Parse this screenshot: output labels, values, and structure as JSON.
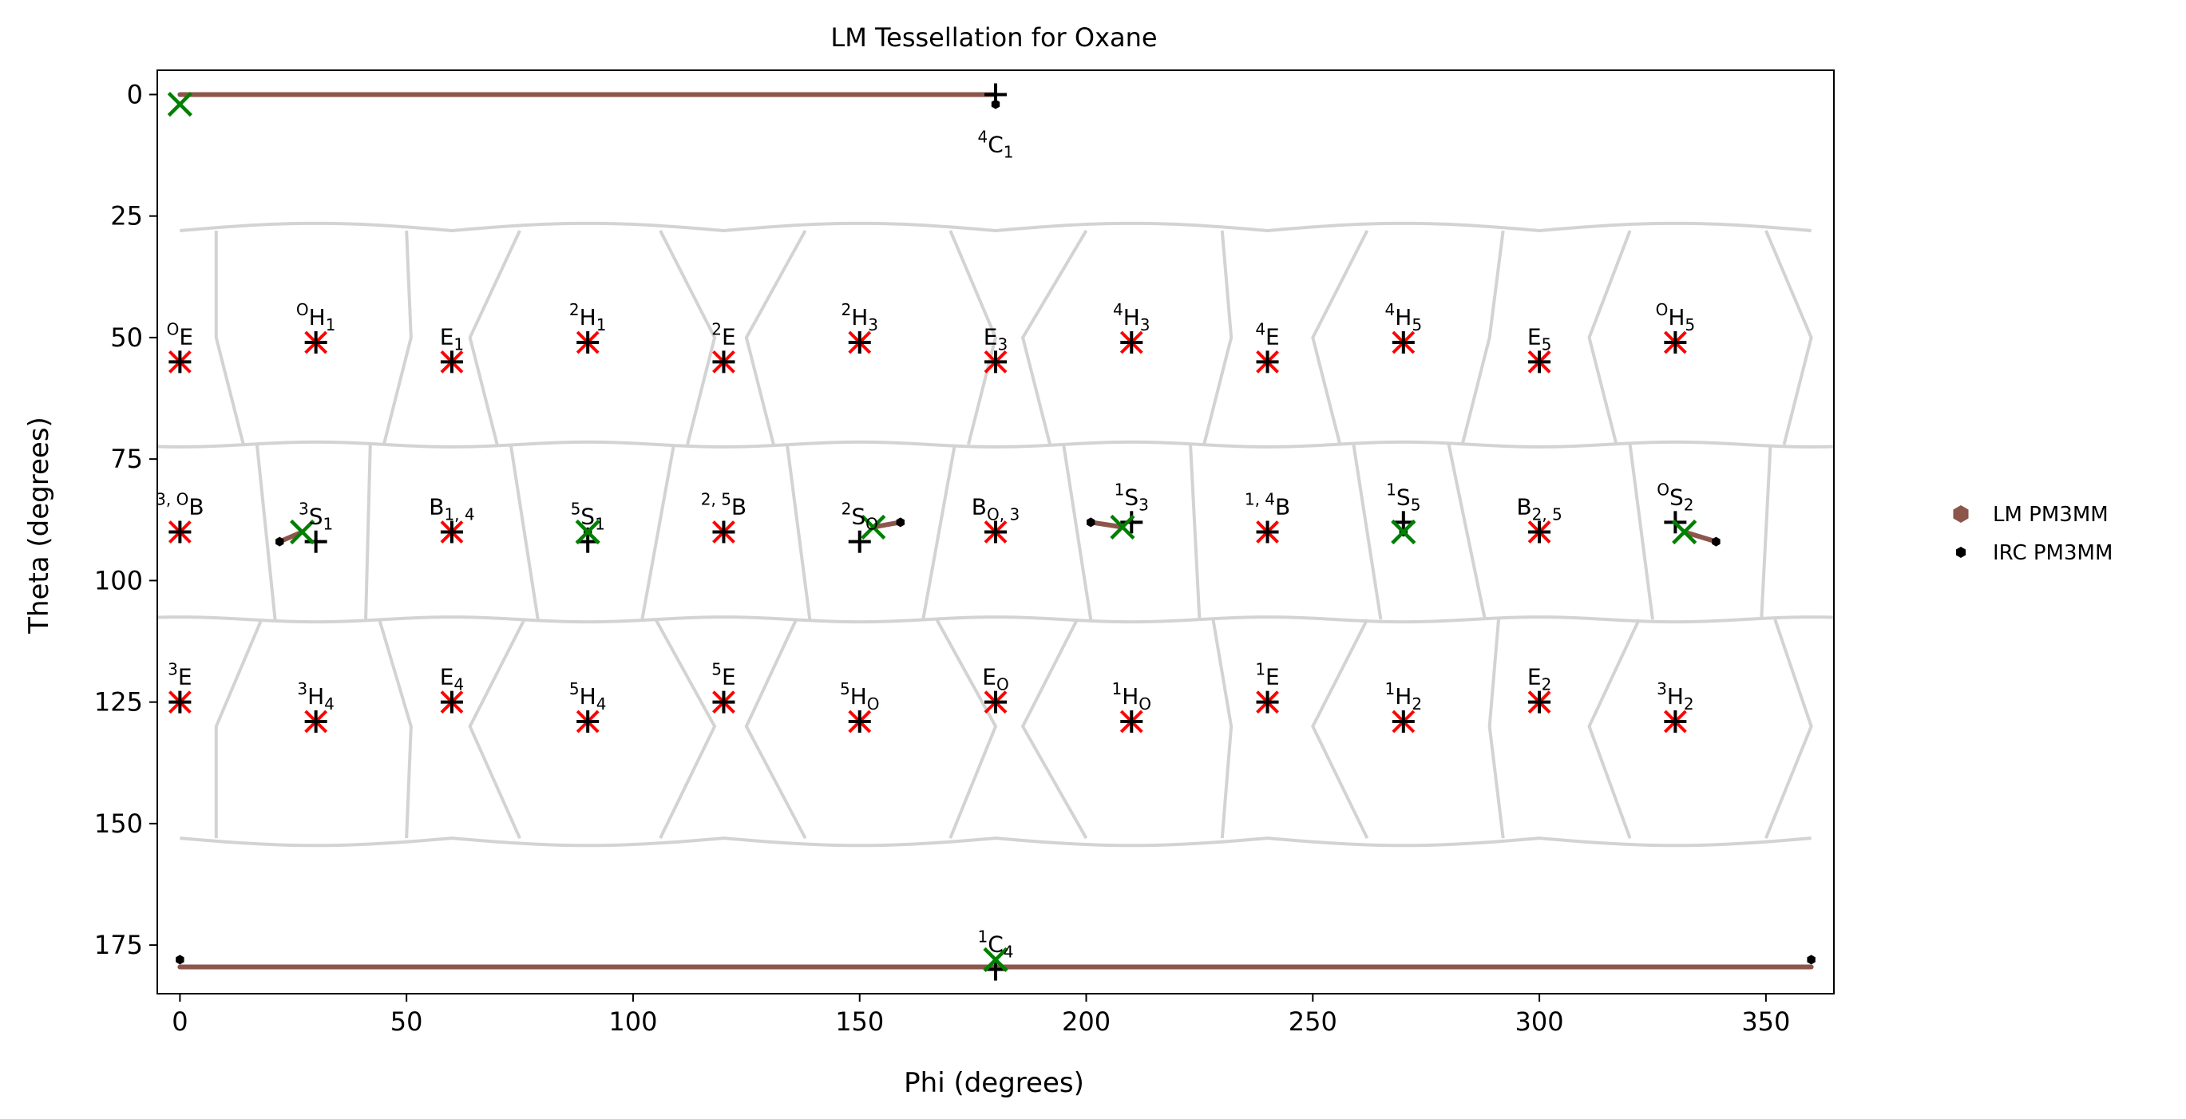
{
  "chart_data": {
    "type": "scatter",
    "title": "LM Tessellation for Oxane",
    "xlabel": "Phi (degrees)",
    "ylabel": "Theta (degrees)",
    "xlim": [
      -5,
      365
    ],
    "ylim": [
      185,
      -5
    ],
    "y_inverted": true,
    "xticks": [
      0,
      50,
      100,
      150,
      200,
      250,
      300,
      350
    ],
    "yticks": [
      0,
      25,
      50,
      75,
      100,
      125,
      150,
      175
    ],
    "grid": false,
    "legend_placement": "outside-right",
    "legend": [
      {
        "label": "LM PM3MM",
        "color": "#8c564b",
        "marker": "hexagon"
      },
      {
        "label": "IRC PM3MM",
        "color": "#000000",
        "marker": "hexagon-small"
      }
    ],
    "colors": {
      "tessellation": "#d3d3d3",
      "path": "#8c564b",
      "reference_x": "#ff0000",
      "lm_x": "#008000",
      "plus": "#000000"
    },
    "reference_points": [
      {
        "sup": "",
        "base": "",
        "sub": "",
        "full": "4C1",
        "lsup": "4",
        "lbase": "C",
        "lsub": "1",
        "phi": 180,
        "theta": 0,
        "label_below": true
      },
      {
        "full": "OE",
        "lsup": "O",
        "lbase": "E",
        "lsub": "",
        "phi": 0,
        "theta": 55
      },
      {
        "full": "OH1",
        "lsup": "O",
        "lbase": "H",
        "lsub": "1",
        "phi": 30,
        "theta": 51
      },
      {
        "full": "E1",
        "lsup": "",
        "lbase": "E",
        "lsub": "1",
        "phi": 60,
        "theta": 55
      },
      {
        "full": "2H1",
        "lsup": "2",
        "lbase": "H",
        "lsub": "1",
        "phi": 90,
        "theta": 51
      },
      {
        "full": "2E",
        "lsup": "2",
        "lbase": "E",
        "lsub": "",
        "phi": 120,
        "theta": 55
      },
      {
        "full": "2H3",
        "lsup": "2",
        "lbase": "H",
        "lsub": "3",
        "phi": 150,
        "theta": 51
      },
      {
        "full": "E3",
        "lsup": "",
        "lbase": "E",
        "lsub": "3",
        "phi": 180,
        "theta": 55
      },
      {
        "full": "4H3",
        "lsup": "4",
        "lbase": "H",
        "lsub": "3",
        "phi": 210,
        "theta": 51
      },
      {
        "full": "4E",
        "lsup": "4",
        "lbase": "E",
        "lsub": "",
        "phi": 240,
        "theta": 55
      },
      {
        "full": "4H5",
        "lsup": "4",
        "lbase": "H",
        "lsub": "5",
        "phi": 270,
        "theta": 51
      },
      {
        "full": "E5",
        "lsup": "",
        "lbase": "E",
        "lsub": "5",
        "phi": 300,
        "theta": 55
      },
      {
        "full": "OH5",
        "lsup": "O",
        "lbase": "H",
        "lsub": "5",
        "phi": 330,
        "theta": 51
      },
      {
        "full": "3,OB",
        "lsup": "3, O",
        "lbase": "B",
        "lsub": "",
        "phi": 0,
        "theta": 90
      },
      {
        "full": "3S1",
        "lsup": "3",
        "lbase": "S",
        "lsub": "1",
        "phi": 30,
        "theta": 92
      },
      {
        "full": "B1,4",
        "lsup": "",
        "lbase": "B",
        "lsub": "1, 4",
        "phi": 60,
        "theta": 90
      },
      {
        "full": "5S1",
        "lsup": "5",
        "lbase": "S",
        "lsub": "1",
        "phi": 90,
        "theta": 92
      },
      {
        "full": "2,5B",
        "lsup": "2, 5",
        "lbase": "B",
        "lsub": "",
        "phi": 120,
        "theta": 90
      },
      {
        "full": "2SO",
        "lsup": "2",
        "lbase": "S",
        "lsub": "O",
        "phi": 150,
        "theta": 92
      },
      {
        "full": "BO,3",
        "lsup": "",
        "lbase": "B",
        "lsub": "O, 3",
        "phi": 180,
        "theta": 90
      },
      {
        "full": "1S3",
        "lsup": "1",
        "lbase": "S",
        "lsub": "3",
        "phi": 210,
        "theta": 88
      },
      {
        "full": "1,4B",
        "lsup": "1, 4",
        "lbase": "B",
        "lsub": "",
        "phi": 240,
        "theta": 90
      },
      {
        "full": "1S5",
        "lsup": "1",
        "lbase": "S",
        "lsub": "5",
        "phi": 270,
        "theta": 88
      },
      {
        "full": "B2,5",
        "lsup": "",
        "lbase": "B",
        "lsub": "2, 5",
        "phi": 300,
        "theta": 90
      },
      {
        "full": "OS2",
        "lsup": "O",
        "lbase": "S",
        "lsub": "2",
        "phi": 330,
        "theta": 88
      },
      {
        "full": "3E",
        "lsup": "3",
        "lbase": "E",
        "lsub": "",
        "phi": 0,
        "theta": 125
      },
      {
        "full": "3H4",
        "lsup": "3",
        "lbase": "H",
        "lsub": "4",
        "phi": 30,
        "theta": 129
      },
      {
        "full": "E4",
        "lsup": "",
        "lbase": "E",
        "lsub": "4",
        "phi": 60,
        "theta": 125
      },
      {
        "full": "5H4",
        "lsup": "5",
        "lbase": "H",
        "lsub": "4",
        "phi": 90,
        "theta": 129
      },
      {
        "full": "5E",
        "lsup": "5",
        "lbase": "E",
        "lsub": "",
        "phi": 120,
        "theta": 125
      },
      {
        "full": "5HO",
        "lsup": "5",
        "lbase": "H",
        "lsub": "O",
        "phi": 150,
        "theta": 129
      },
      {
        "full": "EO",
        "lsup": "",
        "lbase": "E",
        "lsub": "O",
        "phi": 180,
        "theta": 125
      },
      {
        "full": "1HO",
        "lsup": "1",
        "lbase": "H",
        "lsub": "O",
        "phi": 210,
        "theta": 129
      },
      {
        "full": "1E",
        "lsup": "1",
        "lbase": "E",
        "lsub": "",
        "phi": 240,
        "theta": 125
      },
      {
        "full": "1H2",
        "lsup": "1",
        "lbase": "H",
        "lsub": "2",
        "phi": 270,
        "theta": 129
      },
      {
        "full": "E2",
        "lsup": "",
        "lbase": "E",
        "lsub": "2",
        "phi": 300,
        "theta": 125
      },
      {
        "full": "3H2",
        "lsup": "3",
        "lbase": "H",
        "lsub": "2",
        "phi": 330,
        "theta": 129
      },
      {
        "full": "1C4",
        "lsup": "1",
        "lbase": "C",
        "lsub": "4",
        "phi": 180,
        "theta": 180
      }
    ],
    "red_x_points": [
      [
        0,
        55
      ],
      [
        30,
        51
      ],
      [
        60,
        55
      ],
      [
        90,
        51
      ],
      [
        120,
        55
      ],
      [
        150,
        51
      ],
      [
        180,
        55
      ],
      [
        210,
        51
      ],
      [
        240,
        55
      ],
      [
        270,
        51
      ],
      [
        300,
        55
      ],
      [
        330,
        51
      ],
      [
        0,
        90
      ],
      [
        60,
        90
      ],
      [
        120,
        90
      ],
      [
        180,
        90
      ],
      [
        240,
        90
      ],
      [
        300,
        90
      ],
      [
        0,
        125
      ],
      [
        30,
        129
      ],
      [
        60,
        125
      ],
      [
        90,
        129
      ],
      [
        120,
        125
      ],
      [
        150,
        129
      ],
      [
        180,
        125
      ],
      [
        210,
        129
      ],
      [
        240,
        125
      ],
      [
        270,
        129
      ],
      [
        300,
        125
      ],
      [
        330,
        129
      ]
    ],
    "plus_points": [
      [
        180,
        0
      ],
      [
        0,
        55
      ],
      [
        30,
        51
      ],
      [
        60,
        55
      ],
      [
        90,
        51
      ],
      [
        120,
        55
      ],
      [
        150,
        51
      ],
      [
        180,
        55
      ],
      [
        210,
        51
      ],
      [
        240,
        55
      ],
      [
        270,
        51
      ],
      [
        300,
        55
      ],
      [
        330,
        51
      ],
      [
        0,
        90
      ],
      [
        30,
        92
      ],
      [
        60,
        90
      ],
      [
        90,
        92
      ],
      [
        120,
        90
      ],
      [
        150,
        92
      ],
      [
        180,
        90
      ],
      [
        210,
        88
      ],
      [
        240,
        90
      ],
      [
        270,
        88
      ],
      [
        300,
        90
      ],
      [
        330,
        88
      ],
      [
        0,
        125
      ],
      [
        30,
        129
      ],
      [
        60,
        125
      ],
      [
        90,
        129
      ],
      [
        120,
        125
      ],
      [
        150,
        129
      ],
      [
        180,
        125
      ],
      [
        210,
        129
      ],
      [
        240,
        125
      ],
      [
        270,
        129
      ],
      [
        300,
        125
      ],
      [
        330,
        129
      ],
      [
        180,
        180
      ]
    ],
    "lm_points": [
      [
        0,
        2
      ],
      [
        27,
        90
      ],
      [
        90,
        90
      ],
      [
        153,
        89
      ],
      [
        208,
        89
      ],
      [
        270,
        90
      ],
      [
        332,
        90
      ],
      [
        180,
        178
      ]
    ],
    "irc_points": [
      [
        180,
        2
      ],
      [
        22,
        92
      ],
      [
        90,
        90
      ],
      [
        159,
        88
      ],
      [
        201,
        88
      ],
      [
        270,
        90
      ],
      [
        339,
        92
      ],
      [
        0,
        178
      ],
      [
        360,
        178
      ]
    ],
    "irc_paths": [
      [
        [
          0,
          0
        ],
        [
          180,
          0
        ]
      ],
      [
        [
          22,
          92
        ],
        [
          27,
          90
        ]
      ],
      [
        [
          159,
          88
        ],
        [
          153,
          89
        ]
      ],
      [
        [
          201,
          88
        ],
        [
          208,
          89
        ]
      ],
      [
        [
          339,
          92
        ],
        [
          332,
          90
        ]
      ],
      [
        [
          0,
          179.5
        ],
        [
          360,
          179.5
        ]
      ]
    ]
  }
}
